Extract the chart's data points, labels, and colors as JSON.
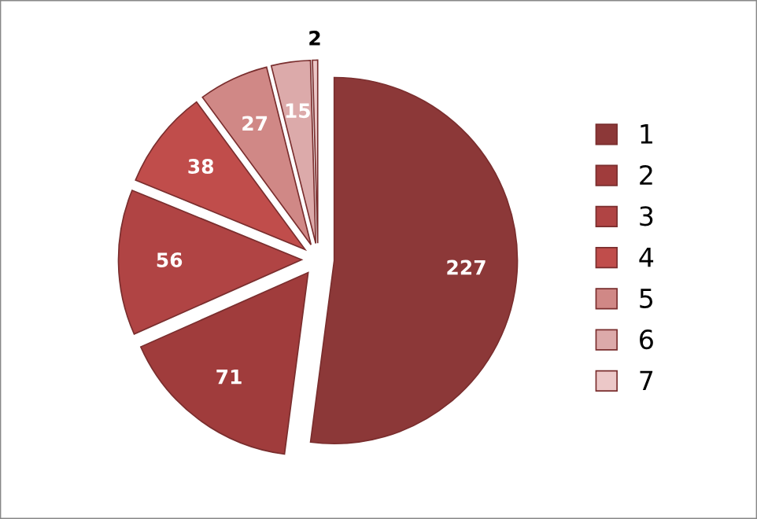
{
  "chart_data": {
    "type": "pie",
    "categories": [
      "1",
      "2",
      "3",
      "4",
      "5",
      "6",
      "7"
    ],
    "values": [
      227,
      71,
      56,
      38,
      27,
      15,
      2
    ],
    "colors": [
      "#8c3838",
      "#a03c3c",
      "#b04444",
      "#c04d4b",
      "#d08886",
      "#dcaaaa",
      "#ecc8c8"
    ],
    "data_labels": true,
    "legend": "right"
  }
}
